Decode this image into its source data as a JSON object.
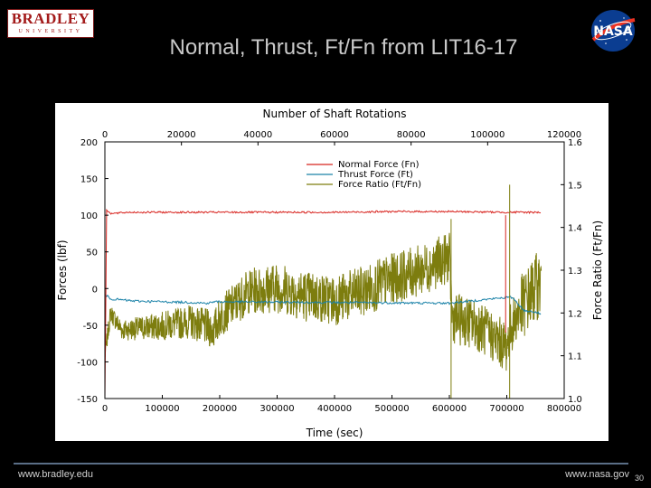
{
  "header": {
    "logo_main": "BRADLEY",
    "logo_sub": "UNIVERSITY",
    "title": "Normal, Thrust, Ft/Fn from LIT16-17",
    "nasa_logo_text": "NASA"
  },
  "footer": {
    "left_url": "www.bradley.edu",
    "right_url": "www.nasa.gov",
    "page_number": "30"
  },
  "colors": {
    "normal_force": "#d8241f",
    "thrust_force": "#1a82a8",
    "force_ratio": "#7d7d0e",
    "nasa_blue": "#0b3d91"
  },
  "chart_data": {
    "type": "line",
    "xlabel": "Time (sec)",
    "x2label": "Number of Shaft Rotations",
    "ylabel": "Forces (lbf)",
    "y2label": "Force Ratio (Ft/Fn)",
    "xlim": [
      0,
      800000
    ],
    "x2lim": [
      0,
      120000
    ],
    "ylim": [
      -150,
      200
    ],
    "y2lim": [
      1.0,
      1.6
    ],
    "x_ticks": [
      "0",
      "100000",
      "200000",
      "300000",
      "400000",
      "500000",
      "600000",
      "700000",
      "800000"
    ],
    "x2_ticks": [
      "0",
      "20000",
      "40000",
      "60000",
      "80000",
      "100000",
      "120000"
    ],
    "y_ticks": [
      "-150",
      "-100",
      "-50",
      "0",
      "50",
      "100",
      "150",
      "200"
    ],
    "y2_ticks": [
      "1.0",
      "1.1",
      "1.2",
      "1.3",
      "1.4",
      "1.5",
      "1.6"
    ],
    "legend_position": "top-right",
    "grid": false,
    "series": [
      {
        "name": "Normal Force (Fn)",
        "axis": "left",
        "x": [
          0,
          3000,
          10000,
          40000,
          100000,
          200000,
          300000,
          400000,
          500000,
          600000,
          700000,
          800000
        ],
        "y": [
          -150,
          108,
          102,
          104,
          104,
          104,
          104,
          104,
          105,
          105,
          104,
          104
        ]
      },
      {
        "name": "Thrust Force (Ft)",
        "axis": "left",
        "x": [
          0,
          10000,
          50000,
          100000,
          150000,
          180000,
          190000,
          600000,
          650000,
          700000,
          710000,
          730000,
          750000,
          760000
        ],
        "y": [
          -8,
          -14,
          -17,
          -18,
          -19,
          -20,
          -18,
          -20,
          -16,
          -12,
          -12,
          -30,
          -32,
          -35
        ]
      },
      {
        "name": "Force Ratio (Ft/Fn)",
        "axis": "right",
        "x": [
          0,
          10000,
          30000,
          100000,
          150000,
          190000,
          200000,
          250000,
          300000,
          350000,
          400000,
          450000,
          500000,
          550000,
          600000,
          605000,
          650000,
          700000,
          705000,
          720000,
          750000,
          800000
        ],
        "y": [
          1.1,
          1.2,
          1.16,
          1.17,
          1.18,
          1.16,
          1.19,
          1.25,
          1.26,
          1.24,
          1.23,
          1.25,
          1.28,
          1.3,
          1.33,
          1.19,
          1.17,
          1.12,
          1.16,
          1.2,
          1.26,
          1.31
        ]
      }
    ]
  }
}
